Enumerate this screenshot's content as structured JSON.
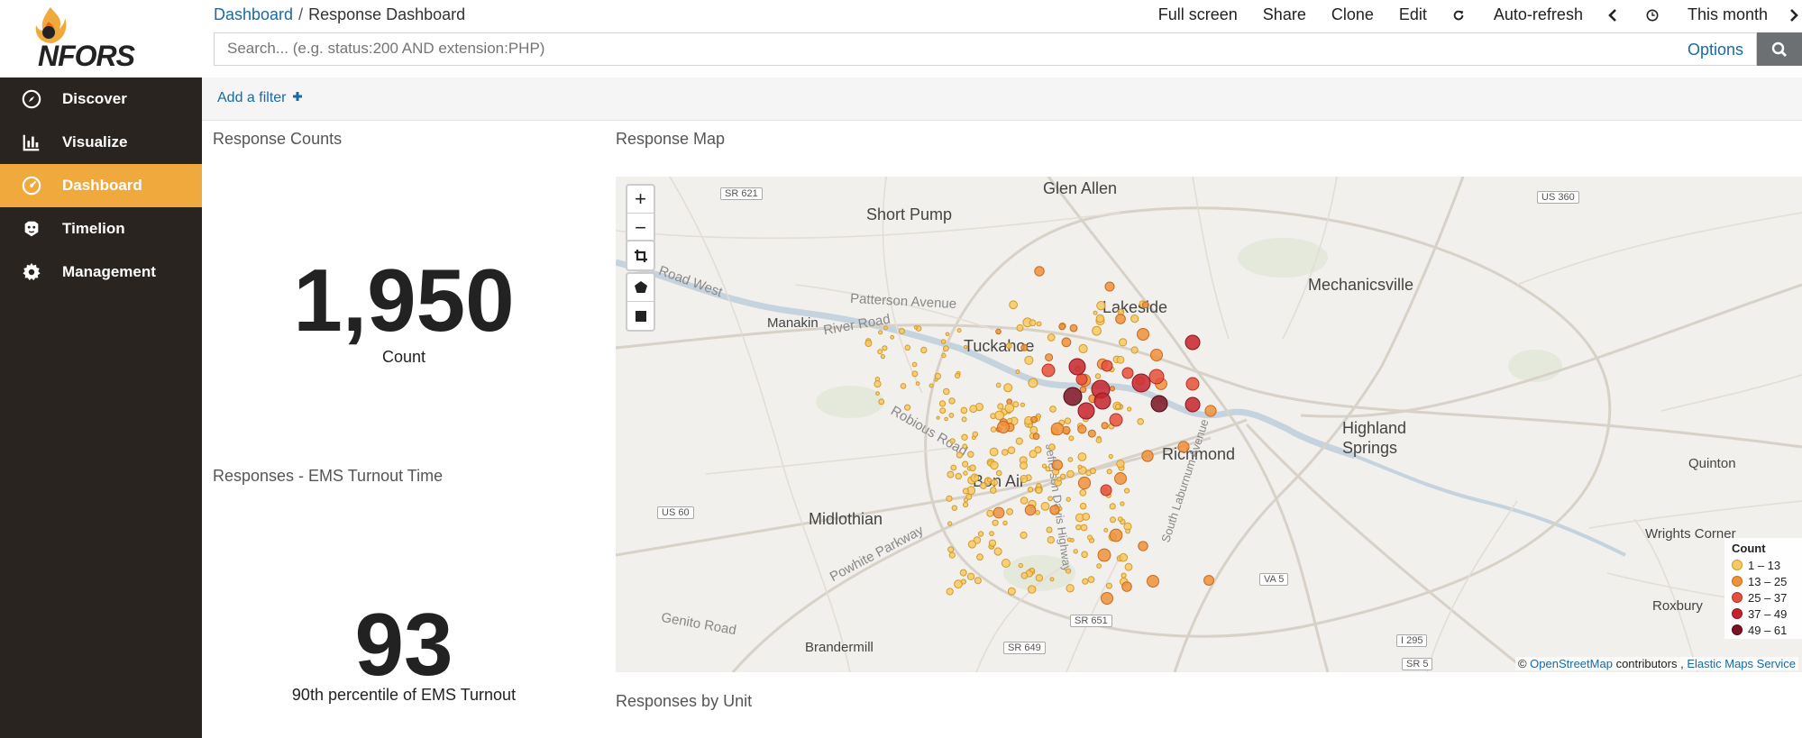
{
  "brand": {
    "logo_text": "NFORS"
  },
  "sidebar": {
    "items": [
      {
        "label": "Discover",
        "icon": "compass-icon"
      },
      {
        "label": "Visualize",
        "icon": "bar-chart-icon"
      },
      {
        "label": "Dashboard",
        "icon": "dashboard-icon",
        "active": true
      },
      {
        "label": "Timelion",
        "icon": "timelion-icon"
      },
      {
        "label": "Management",
        "icon": "gear-icon"
      }
    ],
    "accent": "#f0a93c",
    "background": "#2a2420"
  },
  "breadcrumb": {
    "parent": "Dashboard",
    "separator": "/",
    "current": "Response Dashboard"
  },
  "toolbar": {
    "full_screen": "Full screen",
    "share": "Share",
    "clone": "Clone",
    "edit": "Edit",
    "auto_refresh": "Auto-refresh",
    "time_range": "This month"
  },
  "search": {
    "placeholder": "Search... (e.g. status:200 AND extension:PHP)",
    "options_label": "Options"
  },
  "filter": {
    "add_label": "Add a filter"
  },
  "panels": {
    "counts": {
      "title": "Response Counts",
      "value": "1,950",
      "label": "Count"
    },
    "turnout": {
      "title": "Responses - EMS Turnout Time",
      "value": "93",
      "label": "90th percentile of EMS Turnout"
    },
    "map": {
      "title": "Response Map"
    },
    "by_unit": {
      "title": "Responses by Unit"
    }
  },
  "map": {
    "places": [
      "Glen Allen",
      "Short Pump",
      "Lakeside",
      "Mechanicsville",
      "Manakin",
      "Tuckahoe",
      "Highland Springs",
      "Richmond",
      "Bon Air",
      "Quinton",
      "Midlothian",
      "Wrights Corner",
      "Roxbury",
      "Brandermill"
    ],
    "roads": [
      "Road West",
      "Patterson Avenue",
      "River Road",
      "Robious Road",
      "Powhite Parkway",
      "Genito Road",
      "South Laburnum Avenue",
      "Jefferson Davis Highway"
    ],
    "shields": [
      "SR 621",
      "US 360",
      "US 60",
      "VA 5",
      "SR 651",
      "SR 649",
      "I 295",
      "SR 5"
    ],
    "legend": {
      "title": "Count",
      "bins": [
        {
          "label": "1 – 13",
          "color": "#f7c964"
        },
        {
          "label": "13 – 25",
          "color": "#f0913c"
        },
        {
          "label": "25 – 37",
          "color": "#e6503a"
        },
        {
          "label": "37 – 49",
          "color": "#c5242e"
        },
        {
          "label": "49 – 61",
          "color": "#7d1322"
        }
      ]
    },
    "attribution": {
      "prefix": "©",
      "osm": "OpenStreetMap",
      "middle": "contributors ,",
      "ems": "Elastic Maps Service"
    },
    "controls": {
      "zoom_in": "+",
      "zoom_out": "−"
    }
  }
}
